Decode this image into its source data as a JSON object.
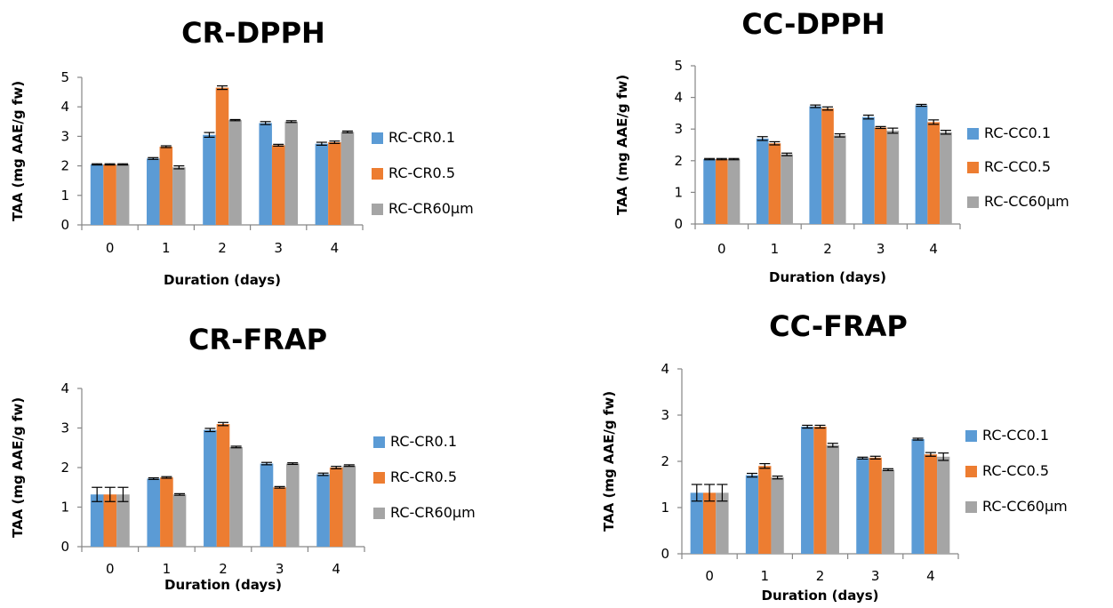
{
  "colors": {
    "series": [
      "#5B9BD5",
      "#ED7D31",
      "#A5A5A5"
    ],
    "axis": "#868686",
    "errorbar": "#000000"
  },
  "chart_data": [
    {
      "type": "bar",
      "title": "CR-DPPH",
      "xlabel": "Duration (days)",
      "ylabel": "TAA (mg AAE/g fw)",
      "categories": [
        "0",
        "1",
        "2",
        "3",
        "4"
      ],
      "ylim": [
        0,
        5
      ],
      "yticks": [
        "0",
        "1",
        "2",
        "3",
        "4",
        "5"
      ],
      "grid": false,
      "legend_position": "right",
      "series": [
        {
          "name": "RC-CR0.1",
          "values": [
            2.05,
            2.25,
            3.05,
            3.45,
            2.75
          ],
          "errors": [
            0.02,
            0.03,
            0.08,
            0.05,
            0.05
          ]
        },
        {
          "name": "RC-CR0.5",
          "values": [
            2.05,
            2.65,
            4.65,
            2.7,
            2.8
          ],
          "errors": [
            0.02,
            0.03,
            0.06,
            0.03,
            0.04
          ]
        },
        {
          "name": "RC-CR60μm",
          "values": [
            2.05,
            1.95,
            3.55,
            3.5,
            3.15
          ],
          "errors": [
            0.02,
            0.05,
            0.02,
            0.03,
            0.03
          ]
        }
      ]
    },
    {
      "type": "bar",
      "title": "CC-DPPH",
      "xlabel": "Duration (days)",
      "ylabel": "TAA (mg AAE/g fw)",
      "categories": [
        "0",
        "1",
        "2",
        "3",
        "4"
      ],
      "ylim": [
        0,
        5
      ],
      "yticks": [
        "0",
        "1",
        "2",
        "3",
        "4",
        "5"
      ],
      "grid": false,
      "legend_position": "right",
      "series": [
        {
          "name": "RC-CC0.1",
          "values": [
            2.05,
            2.7,
            3.72,
            3.38,
            3.75
          ],
          "errors": [
            0.02,
            0.06,
            0.04,
            0.06,
            0.03
          ]
        },
        {
          "name": "RC-CC0.5",
          "values": [
            2.05,
            2.55,
            3.65,
            3.05,
            3.22
          ],
          "errors": [
            0.02,
            0.05,
            0.05,
            0.03,
            0.07
          ]
        },
        {
          "name": "RC-CC60μm",
          "values": [
            2.05,
            2.2,
            2.8,
            2.95,
            2.9
          ],
          "errors": [
            0.02,
            0.04,
            0.05,
            0.08,
            0.06
          ]
        }
      ]
    },
    {
      "type": "bar",
      "title": "CR-FRAP",
      "xlabel": "Duration (days)",
      "ylabel": "TAA (mg AAE/g fw)",
      "categories": [
        "0",
        "1",
        "2",
        "3",
        "4"
      ],
      "ylim": [
        0,
        4
      ],
      "yticks": [
        "0",
        "1",
        "2",
        "3",
        "4"
      ],
      "grid": false,
      "legend_position": "right",
      "series": [
        {
          "name": "RC-CR0.1",
          "values": [
            1.32,
            1.72,
            2.95,
            2.1,
            1.83
          ],
          "errors": [
            0.18,
            0.02,
            0.04,
            0.03,
            0.03
          ]
        },
        {
          "name": "RC-CR0.5",
          "values": [
            1.32,
            1.75,
            3.1,
            1.5,
            2.0
          ],
          "errors": [
            0.18,
            0.02,
            0.04,
            0.02,
            0.03
          ]
        },
        {
          "name": "RC-CR60μm",
          "values": [
            1.32,
            1.32,
            2.52,
            2.1,
            2.05
          ],
          "errors": [
            0.18,
            0.02,
            0.02,
            0.02,
            0.02
          ]
        }
      ]
    },
    {
      "type": "bar",
      "title": "CC-FRAP",
      "xlabel": "Duration (days)",
      "ylabel": "TAA (mg AAE/g fw)",
      "categories": [
        "0",
        "1",
        "2",
        "3",
        "4"
      ],
      "ylim": [
        0,
        4
      ],
      "yticks": [
        "0",
        "1",
        "2",
        "3",
        "4"
      ],
      "grid": false,
      "legend_position": "right",
      "series": [
        {
          "name": "RC-CC0.1",
          "values": [
            1.32,
            1.7,
            2.75,
            2.07,
            2.48
          ],
          "errors": [
            0.18,
            0.04,
            0.03,
            0.02,
            0.02
          ]
        },
        {
          "name": "RC-CC0.5",
          "values": [
            1.32,
            1.9,
            2.75,
            2.08,
            2.15
          ],
          "errors": [
            0.18,
            0.05,
            0.03,
            0.03,
            0.04
          ]
        },
        {
          "name": "RC-CC60μm",
          "values": [
            1.32,
            1.65,
            2.35,
            1.82,
            2.1
          ],
          "errors": [
            0.18,
            0.03,
            0.04,
            0.02,
            0.08
          ]
        }
      ]
    }
  ]
}
